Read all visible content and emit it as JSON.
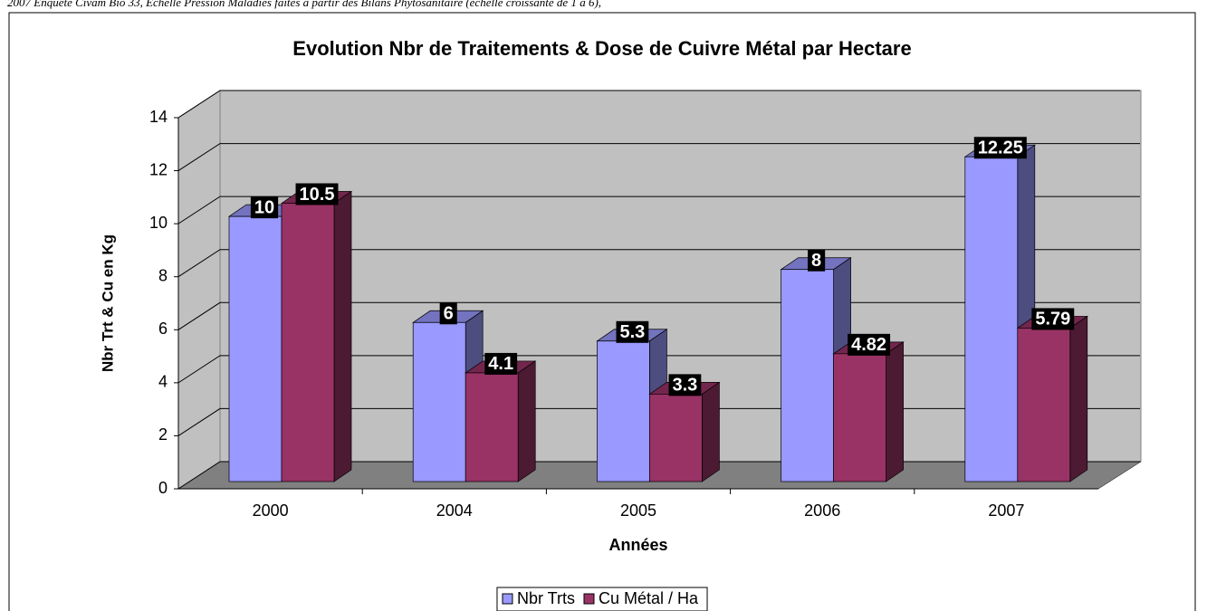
{
  "chart_data": {
    "type": "bar",
    "note": "2007 Enquête Civam Bio 33, Echelle Pression Maladies faites à partir des Bilans Phytosanitaire (échelle croissante de 1 à 6),",
    "title": "Evolution Nbr de Traitements & Dose de Cuivre Métal par Hectare",
    "xlabel": "Années",
    "ylabel": "Nbr Trt & Cu en Kg",
    "categories": [
      "2000",
      "2004",
      "2005",
      "2006",
      "2007"
    ],
    "series": [
      {
        "name": "Nbr Trts",
        "color": "#9999ff",
        "values": [
          10,
          6,
          5.3,
          8,
          12.25
        ]
      },
      {
        "name": "Cu Métal / Ha",
        "color": "#993366",
        "values": [
          10.5,
          4.1,
          3.3,
          4.82,
          5.79
        ]
      }
    ],
    "ylim": [
      0,
      14
    ],
    "yticks": [
      0,
      2,
      4,
      6,
      8,
      10,
      12,
      14
    ],
    "grid": true,
    "legend": "bottom"
  }
}
